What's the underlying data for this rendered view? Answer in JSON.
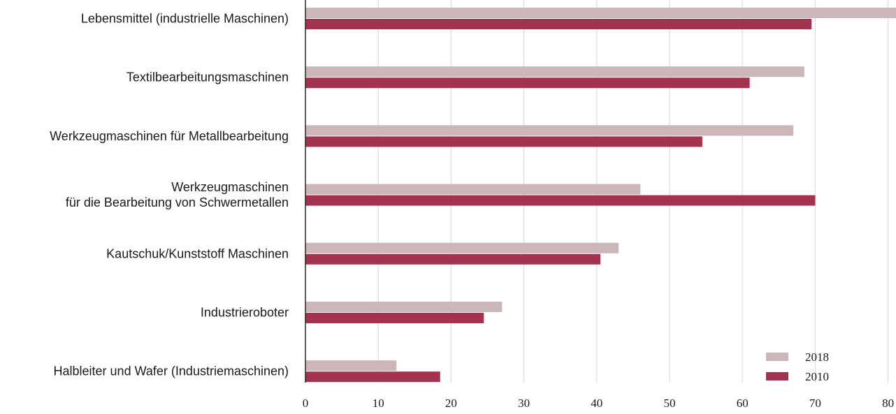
{
  "chart_data": {
    "type": "bar",
    "orientation": "horizontal",
    "categories": [
      [
        "Lebensmittel (industrielle Maschinen)"
      ],
      [
        "Textilbearbeitungsmaschinen"
      ],
      [
        "Werkzeugmaschinen für Metallbearbeitung"
      ],
      [
        "Werkzeugmaschinen",
        "für die Bearbeitung von Schwermetallen"
      ],
      [
        "Kautschuk/Kunststoff Maschinen"
      ],
      [
        "Industrieroboter"
      ],
      [
        "Halbleiter und Wafer (Industriemaschinen)"
      ]
    ],
    "series": [
      {
        "name": "2018",
        "color": "#cbb6ba",
        "values": [
          83,
          68.5,
          67,
          46,
          43,
          27,
          12.5
        ]
      },
      {
        "name": "2010",
        "color": "#a43350",
        "values": [
          69.5,
          61,
          54.5,
          70,
          40.5,
          24.5,
          18.5
        ]
      }
    ],
    "xticks": [
      "0",
      "10",
      "20",
      "30",
      "40",
      "50",
      "60",
      "70",
      "80"
    ],
    "xlim": [
      0,
      80
    ],
    "grid": true,
    "legend_position": "bottom-right",
    "title": "",
    "xlabel": "",
    "ylabel": ""
  }
}
